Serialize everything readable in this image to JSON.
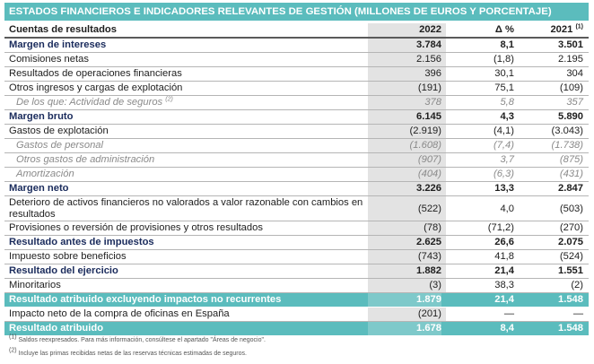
{
  "title": "ESTADOS FINANCIEROS E INDICADORES RELEVANTES DE GESTIÓN (MILLONES DE EUROS Y PORCENTAJE)",
  "header": {
    "label": "Cuentas de resultados",
    "col1": "2022",
    "col2": "Δ %",
    "col3": "2021",
    "col3_note": "(1)"
  },
  "rows": [
    {
      "label": "Margen de intereses",
      "v2022": "3.784",
      "delta": "8,1",
      "v2021": "3.501"
    },
    {
      "label": "Comisiones netas",
      "v2022": "2.156",
      "delta": "(1,8)",
      "v2021": "2.195"
    },
    {
      "label": "Resultados de operaciones financieras",
      "v2022": "396",
      "delta": "30,1",
      "v2021": "304"
    },
    {
      "label": "Otros ingresos y cargas de explotación",
      "v2022": "(191)",
      "delta": "75,1",
      "v2021": "(109)"
    },
    {
      "label": "De los que: Actividad de seguros",
      "note": "(2)",
      "v2022": "378",
      "delta": "5,8",
      "v2021": "357"
    },
    {
      "label": "Margen bruto",
      "v2022": "6.145",
      "delta": "4,3",
      "v2021": "5.890"
    },
    {
      "label": "Gastos de explotación",
      "v2022": "(2.919)",
      "delta": "(4,1)",
      "v2021": "(3.043)"
    },
    {
      "label": "Gastos de personal",
      "v2022": "(1.608)",
      "delta": "(7,4)",
      "v2021": "(1.738)"
    },
    {
      "label": "Otros gastos de administración",
      "v2022": "(907)",
      "delta": "3,7",
      "v2021": "(875)"
    },
    {
      "label": "Amortización",
      "v2022": "(404)",
      "delta": "(6,3)",
      "v2021": "(431)"
    },
    {
      "label": "Margen neto",
      "v2022": "3.226",
      "delta": "13,3",
      "v2021": "2.847"
    },
    {
      "label": "Deterioro de activos financieros no valorados a valor razonable con cambios en resultados",
      "v2022": "(522)",
      "delta": "4,0",
      "v2021": "(503)"
    },
    {
      "label": "Provisiones o reversión de provisiones y otros resultados",
      "v2022": "(78)",
      "delta": "(71,2)",
      "v2021": "(270)"
    },
    {
      "label": "Resultado antes de impuestos",
      "v2022": "2.625",
      "delta": "26,6",
      "v2021": "2.075"
    },
    {
      "label": "Impuesto sobre beneficios",
      "v2022": "(743)",
      "delta": "41,8",
      "v2021": "(524)"
    },
    {
      "label": "Resultado del ejercicio",
      "v2022": "1.882",
      "delta": "21,4",
      "v2021": "1.551"
    },
    {
      "label": "Minoritarios",
      "v2022": "(3)",
      "delta": "38,3",
      "v2021": "(2)"
    },
    {
      "label": "Resultado atribuido excluyendo impactos no recurrentes",
      "v2022": "1.879",
      "delta": "21,4",
      "v2021": "1.548"
    },
    {
      "label": "Impacto neto de la compra de oficinas en España",
      "v2022": "(201)",
      "delta": "—",
      "v2021": "—"
    },
    {
      "label": "Resultado atribuido",
      "v2022": "1.678",
      "delta": "8,4",
      "v2021": "1.548"
    }
  ],
  "footnotes": [
    {
      "mark": "(1)",
      "text": "Saldos reexpresados. Para más información, consúltese el apartado \"Áreas de negocio\"."
    },
    {
      "mark": "(2)",
      "text": "Incluye las primas recibidas netas de las reservas técnicas estimadas de seguros."
    }
  ],
  "colors": {
    "accent": "#5bbcbd",
    "title_text": "#1a2b5c",
    "column_shade": "#e3e3e3"
  }
}
